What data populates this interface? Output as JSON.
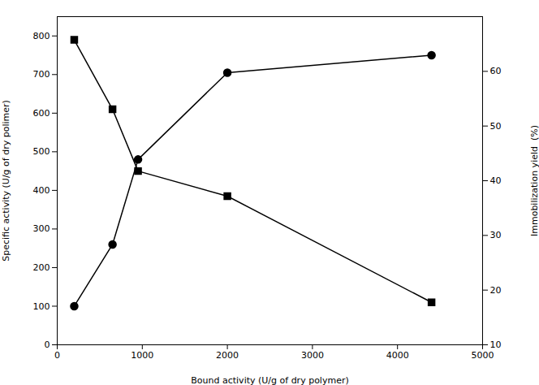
{
  "chart_data": {
    "type": "line",
    "xlabel": "Bound activity (U/g of dry polymer)",
    "ylabel": "Specific activity (U/g of dry polimer)",
    "y2label": "Immobilization yield  (%)",
    "x": [
      200,
      650,
      950,
      2000,
      4400
    ],
    "series": [
      {
        "color": "black",
        "marker": "square",
        "values": [
          790,
          610,
          450,
          385,
          110
        ]
      },
      {
        "color": "black",
        "marker": "circle",
        "values": [
          100,
          260,
          480,
          705,
          750
        ]
      }
    ],
    "xlim": [
      0,
      5000
    ],
    "xticks": [
      0,
      1000,
      2000,
      3000,
      4000,
      5000
    ],
    "ylim": [
      0,
      850
    ],
    "yticks": [
      0,
      100,
      200,
      300,
      400,
      500,
      600,
      700,
      800
    ],
    "y2lim": [
      10,
      70
    ],
    "y2ticks": [
      10,
      20,
      30,
      40,
      50,
      60
    ],
    "grid": false
  }
}
